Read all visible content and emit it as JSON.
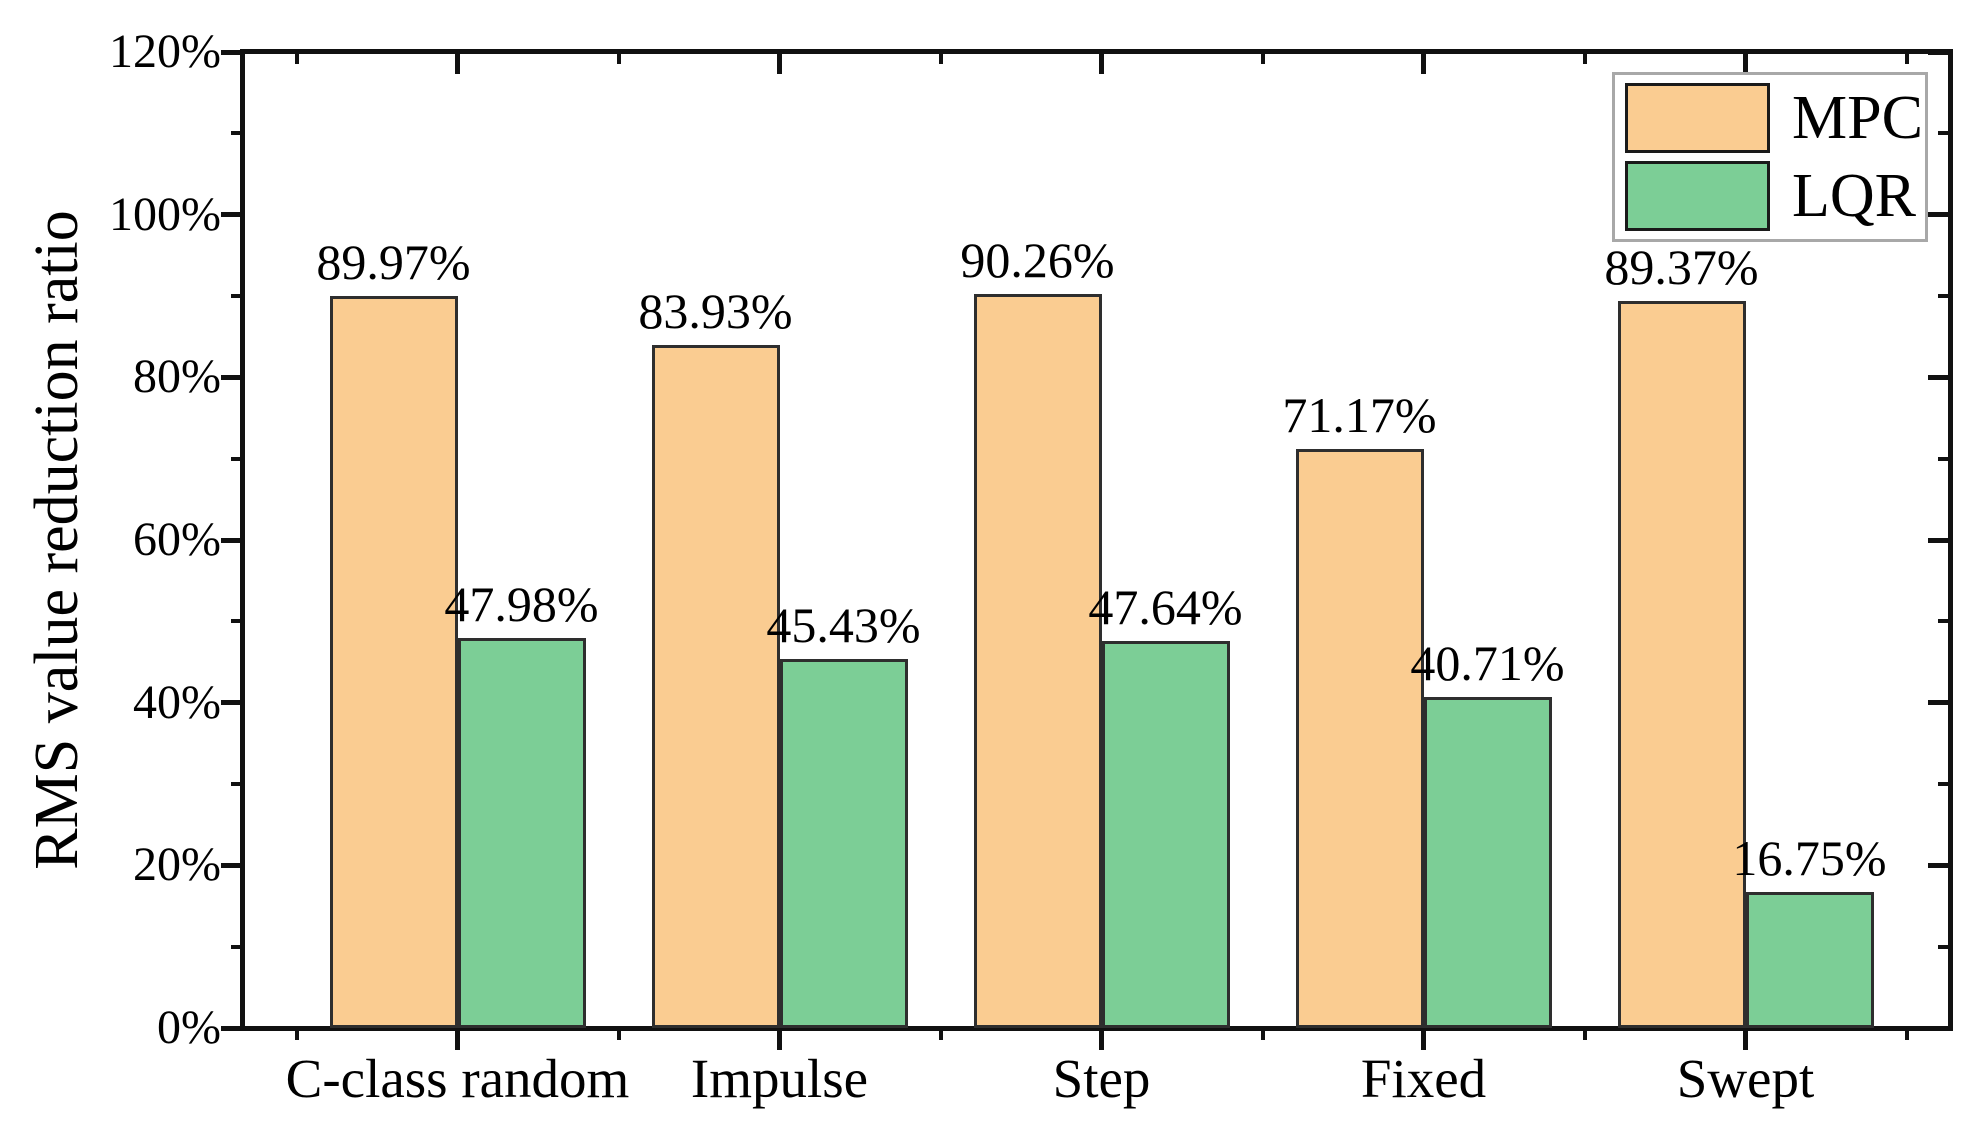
{
  "chart_data": {
    "type": "bar",
    "title": "",
    "xlabel": "",
    "ylabel": "RMS value reduction ratio",
    "categories": [
      "C-class random",
      "Impulse",
      "Step",
      "Fixed",
      "Swept"
    ],
    "series": [
      {
        "name": "MPC",
        "color": "#FACC91",
        "values": [
          89.97,
          83.93,
          90.26,
          71.17,
          89.37
        ],
        "labels": [
          "89.97%",
          "83.93%",
          "90.26%",
          "71.17%",
          "89.37%"
        ]
      },
      {
        "name": "LQR",
        "color": "#7CCE96",
        "values": [
          47.98,
          45.43,
          47.64,
          40.71,
          16.75
        ],
        "labels": [
          "47.98%",
          "45.43%",
          "47.64%",
          "40.71%",
          "16.75%"
        ]
      }
    ],
    "ylim": [
      0,
      120
    ],
    "y_major_step": 20,
    "y_minor_step": 10,
    "y_tick_labels": [
      "0%",
      "20%",
      "40%",
      "60%",
      "80%",
      "100%",
      "120%"
    ],
    "legend_position": "top-right",
    "grid": false,
    "frame": true
  },
  "colors": {
    "bar_edge": "#2e2e2e",
    "axis": "#111111",
    "legend_border": "#a8a8a8",
    "text": "#000000",
    "background": "#ffffff"
  }
}
